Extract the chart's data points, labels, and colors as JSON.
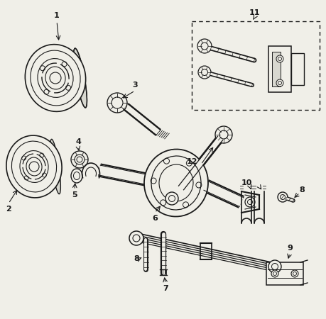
{
  "bg_color": "#f0efe8",
  "line_color": "#1a1a1a",
  "fig_w": 4.59,
  "fig_h": 4.5,
  "dpi": 100,
  "label_fontsize": 8,
  "label_fontweight": "bold"
}
